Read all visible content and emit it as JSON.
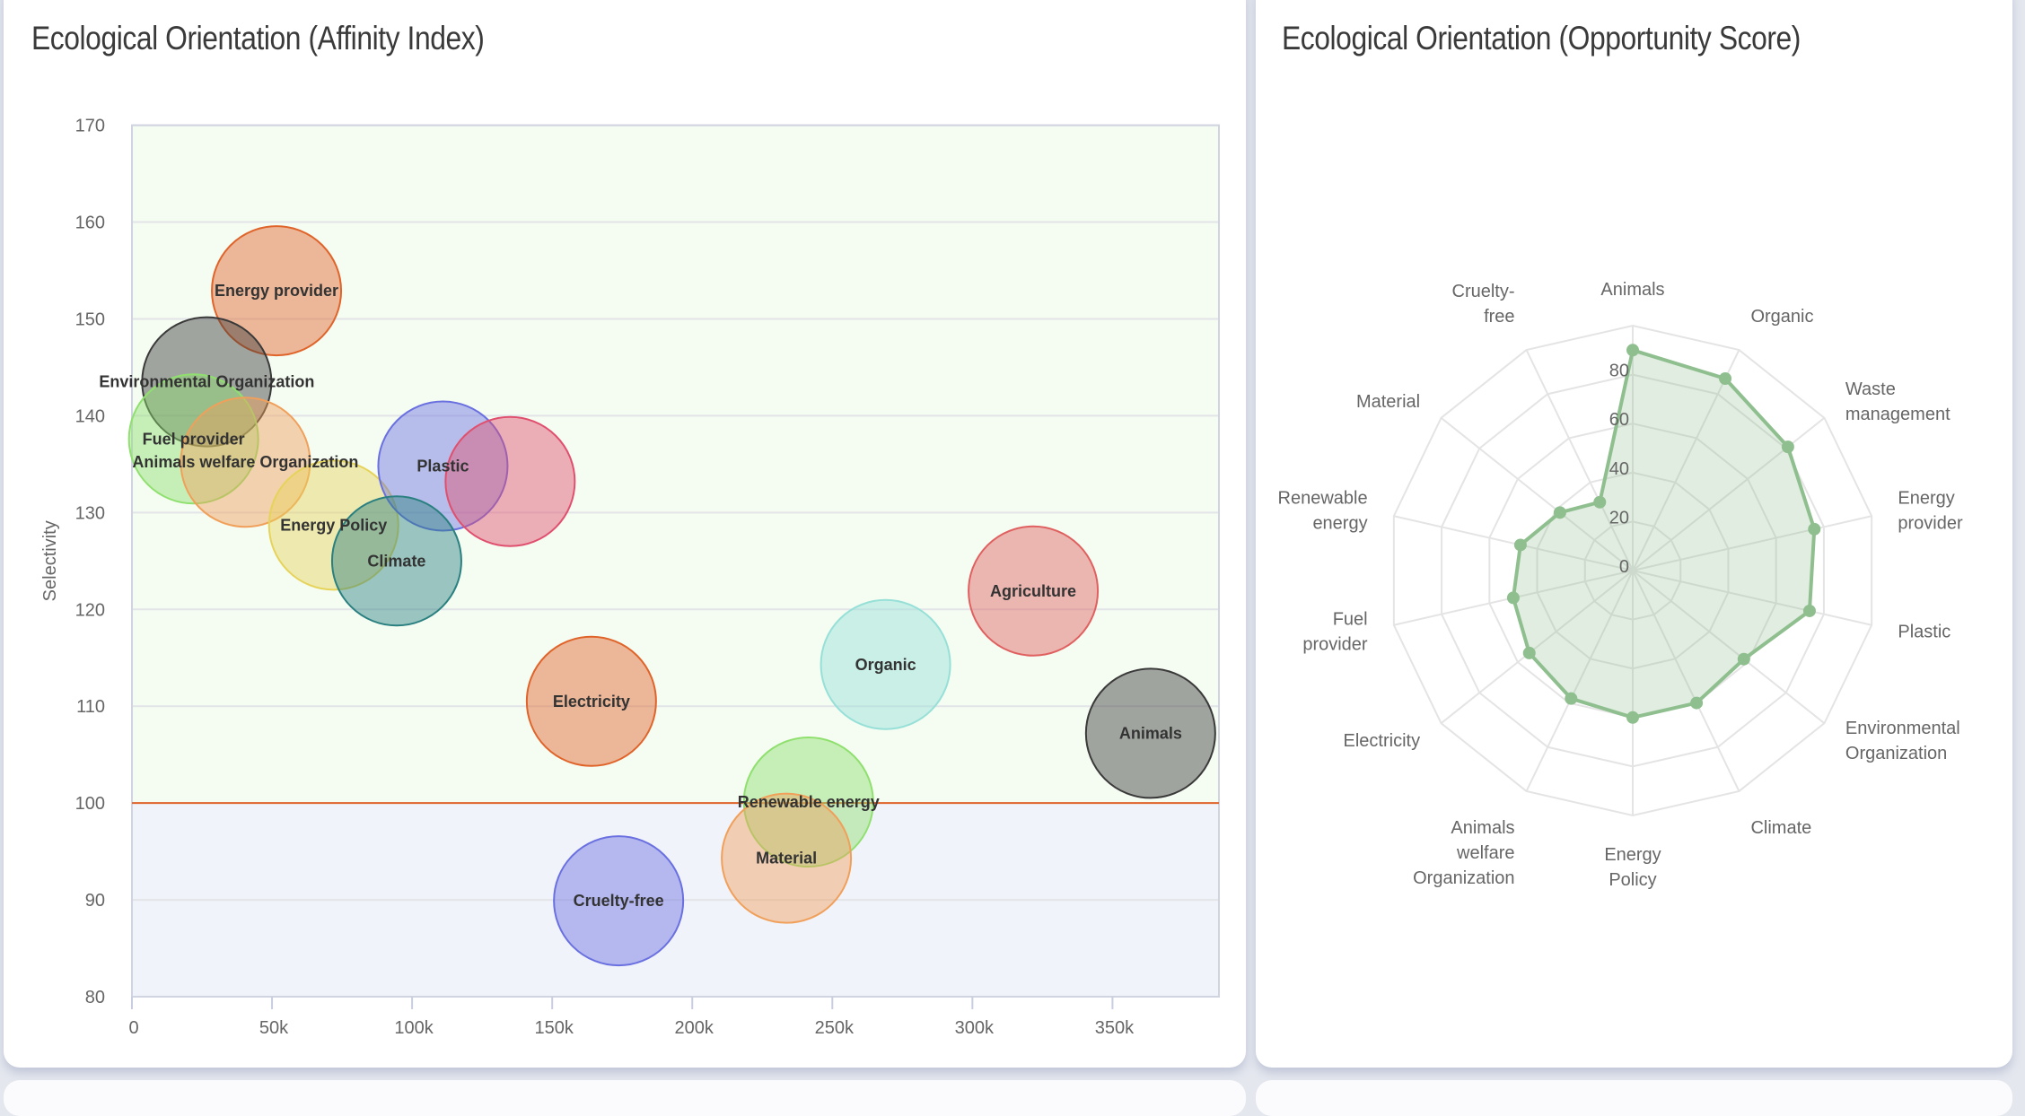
{
  "panels": {
    "left_title": "Ecological Orientation (Affinity Index)",
    "right_title": "Ecological Orientation (Opportunity Score)"
  },
  "chart_data": [
    {
      "type": "bubble",
      "title": "Ecological Orientation (Affinity Index)",
      "xlabel": "",
      "ylabel": "Selectivity",
      "xlim": [
        0,
        388000
      ],
      "ylim": [
        80,
        170
      ],
      "x_ticks": [
        0,
        50000,
        100000,
        150000,
        200000,
        250000,
        300000,
        350000
      ],
      "x_tick_labels": [
        "0",
        "50k",
        "100k",
        "150k",
        "200k",
        "250k",
        "300k",
        "350k"
      ],
      "y_ticks": [
        80,
        90,
        100,
        110,
        120,
        130,
        140,
        150,
        160,
        170
      ],
      "y_tick_labels": [
        "80",
        "90",
        "100",
        "110",
        "120",
        "130",
        "140",
        "150",
        "160",
        "170"
      ],
      "grid": true,
      "threshold": {
        "y": 100,
        "color": "#e0642a",
        "above_color": "#f5fcf2",
        "below_color": "#f1f3fb"
      },
      "points": [
        {
          "label": "Energy provider",
          "x": 51600,
          "y": 152.9,
          "color": "#e0642a"
        },
        {
          "label": "Environmental Organization",
          "x": 26700,
          "y": 143.5,
          "color": "#3a3a3a"
        },
        {
          "label": "Fuel provider",
          "x": 22000,
          "y": 137.6,
          "color": "#8fe06e"
        },
        {
          "label": "Animals welfare Organization",
          "x": 40500,
          "y": 135.2,
          "color": "#f0a05a"
        },
        {
          "label": "Energy Policy",
          "x": 72000,
          "y": 128.7,
          "color": "#e6d35a"
        },
        {
          "label": "Plastic",
          "x": 111000,
          "y": 134.8,
          "color": "#6a70e0"
        },
        {
          "label": "",
          "x": 135000,
          "y": 133.2,
          "color": "#e0506e"
        },
        {
          "label": "Climate",
          "x": 94500,
          "y": 125.0,
          "color": "#2a8080"
        },
        {
          "label": "Electricity",
          "x": 164000,
          "y": 110.5,
          "color": "#e0642a"
        },
        {
          "label": "Organic",
          "x": 269000,
          "y": 114.3,
          "color": "#96e0d8"
        },
        {
          "label": "Agriculture",
          "x": 321700,
          "y": 121.9,
          "color": "#e06060"
        },
        {
          "label": "Animals",
          "x": 363600,
          "y": 107.2,
          "color": "#3a3a3a"
        },
        {
          "label": "Renewable energy",
          "x": 241500,
          "y": 100.1,
          "color": "#8fe06e"
        },
        {
          "label": "Material",
          "x": 233600,
          "y": 94.3,
          "color": "#f0a05a"
        },
        {
          "label": "Cruelty-free",
          "x": 173700,
          "y": 89.9,
          "color": "#6a70e0"
        }
      ]
    },
    {
      "type": "radar",
      "title": "Ecological Orientation (Opportunity Score)",
      "rlim": [
        0,
        100
      ],
      "r_ticks": [
        0,
        20,
        40,
        60,
        80
      ],
      "r_tick_labels": [
        "0",
        "20",
        "40",
        "60",
        "80"
      ],
      "color": "#8fbf8f",
      "categories": [
        [
          "Animals"
        ],
        [
          "Organic"
        ],
        [
          "Waste",
          "management"
        ],
        [
          "Energy",
          "provider"
        ],
        [
          "Plastic"
        ],
        [
          "Environmental",
          "Organization"
        ],
        [
          "Climate"
        ],
        [
          "Energy",
          "Policy"
        ],
        [
          "Animals",
          "welfare",
          "Organization"
        ],
        [
          "Electricity"
        ],
        [
          "Fuel",
          "provider"
        ],
        [
          "Renewable",
          "energy"
        ],
        [
          "Material"
        ],
        [
          "Cruelty-",
          "free"
        ]
      ],
      "values": [
        90,
        87,
        81,
        76,
        74,
        58,
        60,
        60,
        58,
        54,
        50,
        47,
        38,
        31
      ]
    }
  ]
}
